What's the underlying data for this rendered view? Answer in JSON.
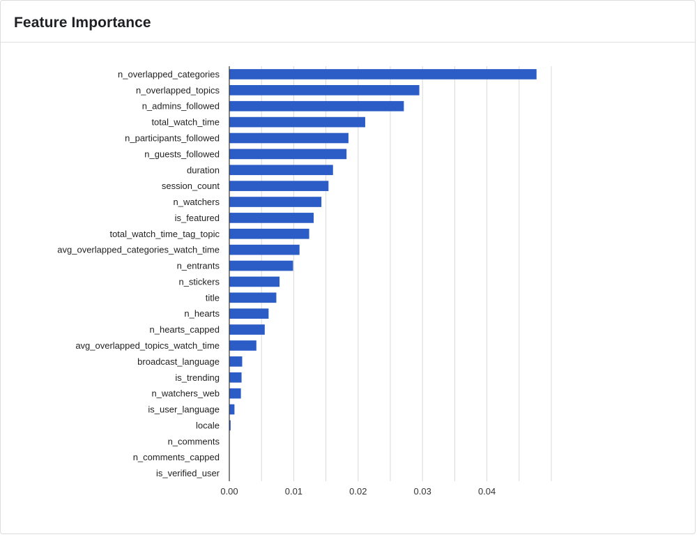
{
  "card": {
    "title": "Feature Importance"
  },
  "chart_data": {
    "type": "bar",
    "orientation": "horizontal",
    "title": "Feature Importance",
    "xlabel": "",
    "ylabel": "",
    "xlim": [
      0,
      0.05
    ],
    "x_ticks": [
      0,
      0.01,
      0.02,
      0.03,
      0.04
    ],
    "x_tick_labels": [
      "0.00",
      "0.01",
      "0.02",
      "0.03",
      "0.04"
    ],
    "grid": true,
    "bar_color": "#2c5cc5",
    "categories": [
      "n_overlapped_categories",
      "n_overlapped_topics",
      "n_admins_followed",
      "total_watch_time",
      "n_participants_followed",
      "n_guests_followed",
      "duration",
      "session_count",
      "n_watchers",
      "is_featured",
      "total_watch_time_tag_topic",
      "avg_overlapped_categories_watch_time",
      "n_entrants",
      "n_stickers",
      "title",
      "n_hearts",
      "n_hearts_capped",
      "avg_overlapped_topics_watch_time",
      "broadcast_language",
      "is_trending",
      "n_watchers_web",
      "is_user_language",
      "locale",
      "n_comments",
      "n_comments_capped",
      "is_verified_user"
    ],
    "values": [
      0.0477,
      0.0295,
      0.0271,
      0.0211,
      0.0185,
      0.0182,
      0.0161,
      0.0154,
      0.0143,
      0.0131,
      0.0124,
      0.0109,
      0.0099,
      0.0078,
      0.0073,
      0.0061,
      0.0055,
      0.0042,
      0.002,
      0.0019,
      0.0018,
      0.0008,
      0.0002,
      0.0,
      0.0,
      0.0
    ]
  }
}
